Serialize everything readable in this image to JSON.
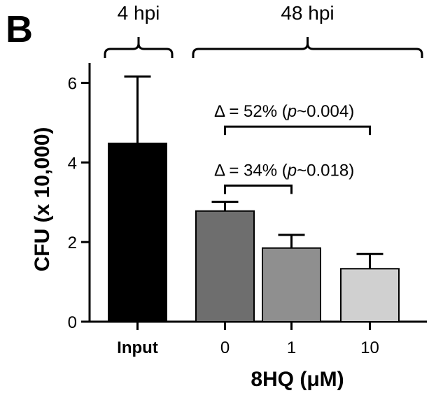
{
  "panel_label": "B",
  "chart_data": {
    "type": "bar",
    "categories": [
      "Input",
      "0",
      "1",
      "10"
    ],
    "values": [
      4.48,
      2.78,
      1.85,
      1.33
    ],
    "errors": [
      1.68,
      0.23,
      0.33,
      0.37
    ],
    "colors": [
      "#000000",
      "#6e6e6e",
      "#8f8f8f",
      "#d0d0d0"
    ],
    "bold_categories": [
      "Input"
    ],
    "xlabel": "8HQ (μM)",
    "ylabel": "CFU (x 10,000)",
    "ylim": [
      0,
      6.5
    ],
    "yticks": [
      0,
      2,
      4,
      6
    ],
    "grid": false,
    "groups": [
      {
        "label": "4 hpi",
        "from": 0,
        "to": 0
      },
      {
        "label": "48 hpi",
        "from": 1,
        "to": 3
      }
    ],
    "annotations": [
      {
        "from": 1,
        "to": 3,
        "level": 4.9,
        "prefix": "Δ = 52% (",
        "p_symbol": "p",
        "suffix": "~0.004)"
      },
      {
        "from": 1,
        "to": 2,
        "level": 3.42,
        "prefix": "Δ = 34% (",
        "p_symbol": "p",
        "suffix": "~0.018)"
      }
    ]
  }
}
